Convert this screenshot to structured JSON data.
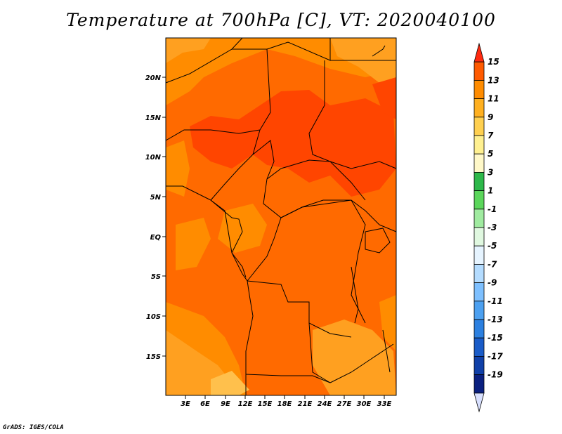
{
  "title": "Temperature at 700hPa [C], VT: 2020040100",
  "footer": "GrADS: IGES/COLA",
  "map": {
    "lat_labels": [
      "20N",
      "15N",
      "10N",
      "5N",
      "EQ",
      "5S",
      "10S",
      "15S"
    ],
    "lon_labels": [
      "3E",
      "6E",
      "9E",
      "12E",
      "15E",
      "18E",
      "21E",
      "24E",
      "27E",
      "30E",
      "33E"
    ]
  },
  "colorbar": {
    "labels": [
      "15",
      "13",
      "11",
      "9",
      "7",
      "5",
      "3",
      "1",
      "-1",
      "-3",
      "-5",
      "-7",
      "-9",
      "-11",
      "-13",
      "-15",
      "-17",
      "-19"
    ],
    "colors": [
      "#ff2a10",
      "#ff5a00",
      "#ff8c00",
      "#ffb020",
      "#ffd050",
      "#fff090",
      "#fff8c8",
      "#2db84a",
      "#5bd65b",
      "#a0eba0",
      "#e0f8e0",
      "#e6f4ff",
      "#b4dcff",
      "#7ec0ff",
      "#4ca0f0",
      "#2c80e0",
      "#1a5cc8",
      "#1040a8",
      "#0a2080",
      "#d8e0ff"
    ]
  },
  "colors": {
    "hot": "#ff4500",
    "warm": "#ff6a00",
    "mild": "#ff8c00",
    "cool": "#ffa020",
    "coolest": "#ffc04c",
    "water": "#000000"
  }
}
